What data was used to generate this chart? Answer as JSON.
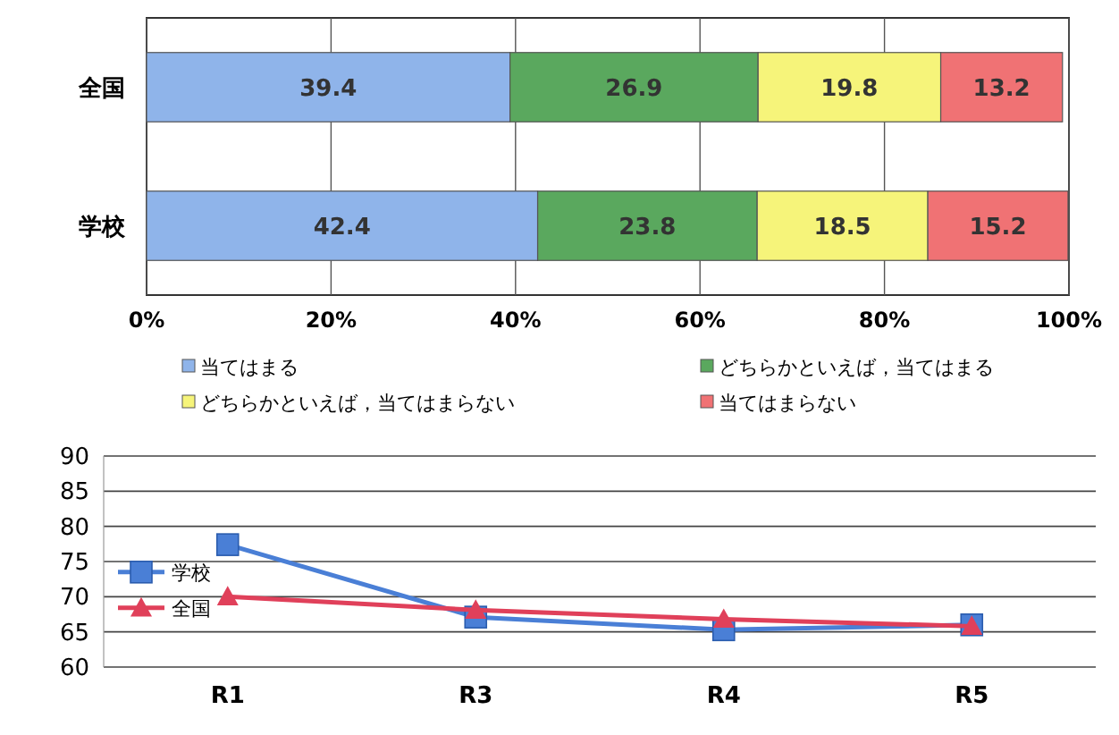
{
  "chart_data": [
    {
      "type": "bar",
      "orientation": "horizontal",
      "stacked": true,
      "categories": [
        "全国",
        "学校"
      ],
      "series": [
        {
          "name": "当てはまる",
          "color": "#8fb4ea",
          "values": [
            39.4,
            42.4
          ]
        },
        {
          "name": "どちらかといえば，当てはまる",
          "color": "#5aa85e",
          "values": [
            26.9,
            23.8
          ]
        },
        {
          "name": "どちらかといえば，当てはまらない",
          "color": "#f6f47a",
          "values": [
            19.8,
            18.5
          ]
        },
        {
          "name": "当てはまらない",
          "color": "#f07274",
          "values": [
            13.2,
            15.2
          ]
        }
      ],
      "xlim": [
        0,
        100
      ],
      "xticks": [
        {
          "value": 0,
          "label": "0%"
        },
        {
          "value": 20,
          "label": "20%"
        },
        {
          "value": 40,
          "label": "40%"
        },
        {
          "value": 60,
          "label": "60%"
        },
        {
          "value": 80,
          "label": "80%"
        },
        {
          "value": 100,
          "label": "100%"
        }
      ],
      "grid": "x",
      "data_labels": true,
      "legend": "bottom"
    },
    {
      "type": "line",
      "categories": [
        "R1",
        "R3",
        "R4",
        "R5"
      ],
      "series": [
        {
          "name": "学校",
          "color": "#4a7fd6",
          "marker": "square",
          "values": [
            77.4,
            67.1,
            65.3,
            66.0
          ]
        },
        {
          "name": "全国",
          "color": "#e0405a",
          "marker": "triangle",
          "values": [
            70.0,
            68.1,
            66.8,
            65.8
          ]
        }
      ],
      "ylim": [
        60,
        90
      ],
      "yticks": [
        60,
        65,
        70,
        75,
        80,
        85,
        90
      ],
      "grid": "y",
      "legend": "left"
    }
  ]
}
